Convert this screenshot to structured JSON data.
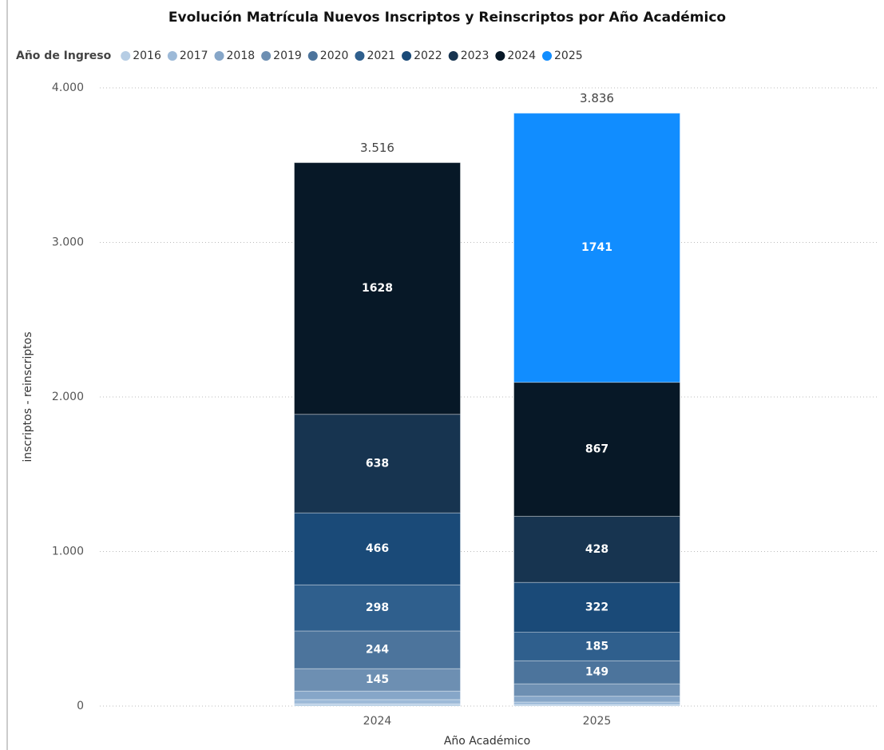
{
  "chart_data": {
    "type": "stacked_bar",
    "title": "Evolución Matrícula Nuevos Inscriptos y Reinscriptos por Año Académico",
    "legend_title": "Año de Ingreso",
    "x_label": "Año Académico",
    "y_label": "inscriptos - reinscriptos",
    "categories": [
      "2024",
      "2025"
    ],
    "ylim": [
      0,
      4000
    ],
    "yticks": [
      0,
      {
        "value": 1000,
        "label": "1.000"
      },
      {
        "value": 2000,
        "label": "2.000"
      },
      {
        "value": 3000,
        "label": "3.000"
      },
      {
        "value": 4000,
        "label": "4.000"
      }
    ],
    "grid": true,
    "series": [
      {
        "name": "2016",
        "color": "#b6cde4",
        "values": [
          14,
          9
        ]
      },
      {
        "name": "2017",
        "color": "#9dbad8",
        "values": [
          28,
          17
        ]
      },
      {
        "name": "2018",
        "color": "#86a6c8",
        "values": [
          55,
          38
        ]
      },
      {
        "name": "2019",
        "color": "#6d8fb2",
        "values": [
          145,
          80
        ]
      },
      {
        "name": "2020",
        "color": "#4c749c",
        "values": [
          244,
          149
        ]
      },
      {
        "name": "2021",
        "color": "#2f5f8d",
        "values": [
          298,
          185
        ]
      },
      {
        "name": "2022",
        "color": "#1a4a78",
        "values": [
          466,
          322
        ]
      },
      {
        "name": "2023",
        "color": "#173450",
        "values": [
          638,
          428
        ]
      },
      {
        "name": "2024",
        "color": "#071827",
        "values": [
          1628,
          867
        ]
      },
      {
        "name": "2025",
        "color": "#118dff",
        "values": [
          null,
          1741
        ]
      }
    ],
    "totals": {
      "values": [
        3516,
        3836
      ],
      "value_labels": [
        "3.516",
        "3.836"
      ]
    }
  }
}
